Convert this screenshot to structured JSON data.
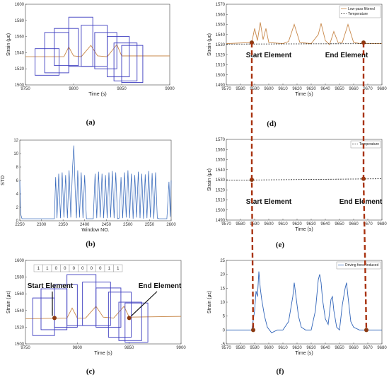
{
  "colors": {
    "box": "#3b3bbf",
    "filtered": "#c8884a",
    "temperature": "#222222",
    "driving": "#2f63b8",
    "marker": "#8b3a12",
    "connector": "#a8320f"
  },
  "chart_data": [
    {
      "id": "a",
      "panel_label": "(a)",
      "type": "line",
      "xlabel": "Time (s)",
      "ylabel": "Strain (με)",
      "xlim": [
        9750,
        9900
      ],
      "ylim": [
        1500,
        1600
      ],
      "xticks": [
        "9750",
        "9800",
        "9850",
        "9900"
      ],
      "yticks": [
        "1500",
        "1520",
        "1540",
        "1560",
        "1580",
        "1600"
      ],
      "series": [
        {
          "x": [
            9750,
            9790,
            9795,
            9800,
            9808,
            9818,
            9825,
            9835,
            9845,
            9850,
            9900
          ],
          "y": [
            1535,
            1535,
            1547,
            1536,
            1535,
            1549,
            1536,
            1535,
            1550,
            1536,
            1536
          ]
        }
      ],
      "boxes": [
        [
          9760,
          9785,
          1512,
          1545
        ],
        [
          9770,
          9795,
          1515,
          1565
        ],
        [
          9780,
          9805,
          1524,
          1570
        ],
        [
          9795,
          9820,
          1523,
          1584
        ],
        [
          9808,
          9835,
          1523,
          1574
        ],
        [
          9822,
          9845,
          1520,
          1565
        ],
        [
          9835,
          9858,
          1510,
          1560
        ],
        [
          9842,
          9866,
          1505,
          1552
        ],
        [
          9850,
          9872,
          1503,
          1549
        ]
      ]
    },
    {
      "id": "b",
      "panel_label": "(b)",
      "type": "line",
      "xlabel": "Window NO.",
      "ylabel": "STD",
      "xlim": [
        2250,
        2600
      ],
      "ylim": [
        0,
        12
      ],
      "xticks": [
        "2250",
        "2300",
        "2350",
        "2400",
        "2450",
        "2500",
        "2550",
        "2600"
      ],
      "yticks": [
        "0",
        "2",
        "4",
        "6",
        "8",
        "10",
        "12"
      ],
      "series": [
        {
          "x": [
            2250,
            2252,
            2255,
            2258,
            2300,
            2330,
            2333,
            2336,
            2340,
            2344,
            2348,
            2352,
            2356,
            2360,
            2364,
            2368,
            2372,
            2375,
            2378,
            2381,
            2384,
            2388,
            2392,
            2396,
            2400,
            2404,
            2410,
            2420,
            2424,
            2428,
            2432,
            2436,
            2440,
            2444,
            2448,
            2452,
            2456,
            2460,
            2464,
            2468,
            2472,
            2476,
            2480,
            2484,
            2488,
            2492,
            2496,
            2500,
            2504,
            2508,
            2512,
            2516,
            2520,
            2524,
            2528,
            2532,
            2536,
            2540,
            2544,
            2548,
            2552,
            2556,
            2560,
            2564,
            2568,
            2572,
            2575,
            2580,
            2590,
            2595,
            2598,
            2600
          ],
          "y": [
            6,
            1,
            0.3,
            0.3,
            0.3,
            0.3,
            6.5,
            0.4,
            7,
            0.4,
            7.2,
            0.5,
            6.8,
            0.4,
            7.5,
            0.5,
            8,
            11.2,
            4.5,
            0.4,
            7.5,
            0.5,
            7.2,
            0.4,
            6.8,
            0.3,
            0.3,
            0.3,
            7,
            0.4,
            7.3,
            0.5,
            7,
            0.4,
            6.8,
            0.4,
            7.2,
            0.5,
            7.4,
            0.4,
            7.2,
            0.3,
            0.4,
            6.5,
            0.4,
            7.2,
            0.5,
            7.5,
            0.4,
            7,
            0.3,
            6.8,
            0.5,
            7.3,
            0.4,
            7,
            0.3,
            6.9,
            0.4,
            7.4,
            0.5,
            7.1,
            0.3,
            7.2,
            0.4,
            0.3,
            0.3,
            0.3,
            0.3,
            5.8,
            0.6,
            6
          ]
        }
      ]
    },
    {
      "id": "c",
      "panel_label": "(c)",
      "type": "line",
      "xlabel": "Time (s)",
      "ylabel": "Strain (με)",
      "xlim": [
        9750,
        9900
      ],
      "ylim": [
        1500,
        1600
      ],
      "xticks": [
        "9750",
        "9800",
        "9850",
        "9900"
      ],
      "yticks": [
        "1500",
        "1520",
        "1540",
        "1560",
        "1580",
        "1600"
      ],
      "series": [
        {
          "x": [
            9750,
            9790,
            9795,
            9800,
            9808,
            9818,
            9825,
            9835,
            9845,
            9850,
            9900
          ],
          "y": [
            1530,
            1531,
            1543,
            1531,
            1531,
            1545,
            1532,
            1531,
            1545,
            1532,
            1533
          ]
        }
      ],
      "boxes": [
        [
          9757,
          9778,
          1510,
          1555
        ],
        [
          9765,
          9790,
          1517,
          1566
        ],
        [
          9778,
          9800,
          1520,
          1571
        ],
        [
          9790,
          9818,
          1522,
          1583
        ],
        [
          9805,
          9832,
          1522,
          1574
        ],
        [
          9818,
          9842,
          1520,
          1567
        ],
        [
          9830,
          9852,
          1508,
          1562
        ],
        [
          9840,
          9862,
          1504,
          1550
        ],
        [
          9846,
          9868,
          1502,
          1549
        ]
      ],
      "element_row": [
        "1",
        "1",
        "0",
        "0",
        "0",
        "0",
        "0",
        "0",
        "1",
        "1"
      ],
      "markers": [
        [
          9778,
          1531
        ],
        [
          9850,
          1531
        ]
      ],
      "annotations": [
        "Start Element",
        "End Element"
      ]
    },
    {
      "id": "d",
      "panel_label": "(d)",
      "type": "line",
      "xlabel": "Time (s)",
      "ylabel": "Strain (με)",
      "xlim": [
        9570,
        9680
      ],
      "ylim": [
        1490,
        1570
      ],
      "xticks": [
        "9570",
        "9580",
        "9590",
        "9600",
        "9610",
        "9620",
        "9630",
        "9640",
        "9650",
        "9660",
        "9670",
        "9680"
      ],
      "yticks": [
        "1490",
        "1500",
        "1510",
        "1520",
        "1530",
        "1540",
        "1550",
        "1560",
        "1570"
      ],
      "series": [
        {
          "name": "Low-pass filtered",
          "x": [
            9570,
            9588,
            9590,
            9592,
            9594,
            9596,
            9598,
            9600,
            9610,
            9614,
            9618,
            9622,
            9630,
            9635,
            9637,
            9640,
            9643,
            9646,
            9649,
            9652,
            9656,
            9660,
            9665,
            9670,
            9680
          ],
          "y": [
            1531,
            1532,
            1546,
            1534,
            1552,
            1535,
            1546,
            1532,
            1531,
            1533,
            1550,
            1532,
            1531,
            1540,
            1551,
            1534,
            1530,
            1543,
            1532,
            1532,
            1550,
            1532,
            1531,
            1531,
            1531
          ]
        },
        {
          "name": "Temperature",
          "x": [
            9570,
            9680
          ],
          "y": [
            1530.5,
            1531
          ]
        }
      ],
      "markers": [
        [
          9588,
          1532
        ],
        [
          9667,
          1532
        ]
      ],
      "annotations": [
        "Start Element",
        "End Element"
      ]
    },
    {
      "id": "e",
      "panel_label": "(e)",
      "type": "line",
      "xlabel": "Time (s)",
      "ylabel": "Strain (με)",
      "xlim": [
        9570,
        9680
      ],
      "ylim": [
        1490,
        1570
      ],
      "xticks": [
        "9570",
        "9580",
        "9590",
        "9600",
        "9610",
        "9620",
        "9630",
        "9640",
        "9650",
        "9660",
        "9670",
        "9680"
      ],
      "yticks": [
        "1490",
        "1500",
        "1510",
        "1520",
        "1530",
        "1540",
        "1550",
        "1560",
        "1570"
      ],
      "series": [
        {
          "name": "Temperature",
          "x": [
            9570,
            9680
          ],
          "y": [
            1529.5,
            1531
          ]
        }
      ],
      "markers": [
        [
          9588,
          1530
        ],
        [
          9667,
          1531
        ]
      ],
      "annotations": [
        "Start Element",
        "End Element"
      ]
    },
    {
      "id": "f",
      "panel_label": "(f)",
      "type": "line",
      "xlabel": "Time (s)",
      "ylabel": "Strain (με)",
      "xlim": [
        9570,
        9680
      ],
      "ylim": [
        -5,
        25
      ],
      "xticks": [
        "9570",
        "9580",
        "9590",
        "9600",
        "9610",
        "9620",
        "9630",
        "9640",
        "9650",
        "9660",
        "9670",
        "9680"
      ],
      "yticks": [
        "-5",
        "0",
        "5",
        "10",
        "15",
        "20",
        "25"
      ],
      "series": [
        {
          "name": "Driving force-induced",
          "x": [
            9570,
            9588,
            9590,
            9591,
            9592,
            9593,
            9594,
            9595,
            9597,
            9599,
            9602,
            9606,
            9610,
            9614,
            9617,
            9618,
            9619,
            9621,
            9623,
            9626,
            9630,
            9633,
            9635,
            9636,
            9637,
            9638,
            9640,
            9642,
            9644,
            9645,
            9646,
            9648,
            9650,
            9652,
            9654,
            9655,
            9656,
            9658,
            9660,
            9664,
            9668,
            9672,
            9680
          ],
          "y": [
            0,
            0,
            7,
            14,
            12,
            21,
            15,
            11,
            5,
            1,
            -1,
            0,
            0,
            3,
            12,
            17,
            13,
            5,
            1,
            0,
            0,
            7,
            18,
            20,
            17,
            11,
            4,
            2,
            11,
            12,
            7,
            1,
            0,
            9,
            15,
            17,
            12,
            3,
            1,
            0,
            0,
            0,
            0
          ]
        }
      ],
      "markers": [
        [
          9589,
          0
        ],
        [
          9669,
          0
        ]
      ]
    }
  ]
}
